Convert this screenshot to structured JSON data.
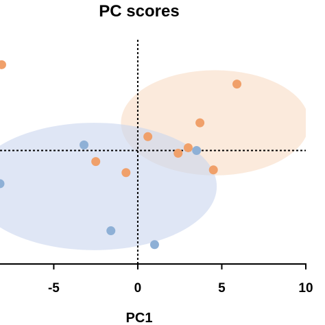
{
  "chart_data": {
    "type": "scatter",
    "title": "PC scores",
    "xlabel": "PC1",
    "ylabel": "",
    "xlim": [
      -8.2,
      10
    ],
    "ylim": [
      -4.1,
      4.0
    ],
    "x_ticks": [
      -5,
      0,
      5,
      10
    ],
    "x_tick_labels": [
      "-5",
      "0",
      "5",
      "10"
    ],
    "reference_lines": {
      "x": 0,
      "y": 0,
      "style": "dotted"
    },
    "series": [
      {
        "color": "#f0a06a",
        "ellipse_color": "#f9dcc4",
        "ellipse": {
          "center": [
            4.6,
            1.0
          ],
          "rx": 5.6,
          "ry": 1.9
        },
        "points": [
          [
            -8.1,
            3.1
          ],
          [
            5.9,
            2.4
          ],
          [
            3.7,
            1.0
          ],
          [
            0.6,
            0.5
          ],
          [
            3.0,
            0.1
          ],
          [
            2.4,
            -0.1
          ],
          [
            -2.5,
            -0.4
          ],
          [
            -0.7,
            -0.8
          ],
          [
            4.5,
            -0.7
          ]
        ]
      },
      {
        "color": "#8eb0d6",
        "ellipse_color": "#c9d5ee",
        "ellipse": {
          "center": [
            -2.6,
            -1.3
          ],
          "rx": 7.3,
          "ry": 2.3
        },
        "points": [
          [
            -3.2,
            0.2
          ],
          [
            3.5,
            0.0
          ],
          [
            -8.2,
            -1.2
          ],
          [
            -1.6,
            -2.9
          ],
          [
            1.0,
            -3.4
          ]
        ]
      }
    ]
  }
}
